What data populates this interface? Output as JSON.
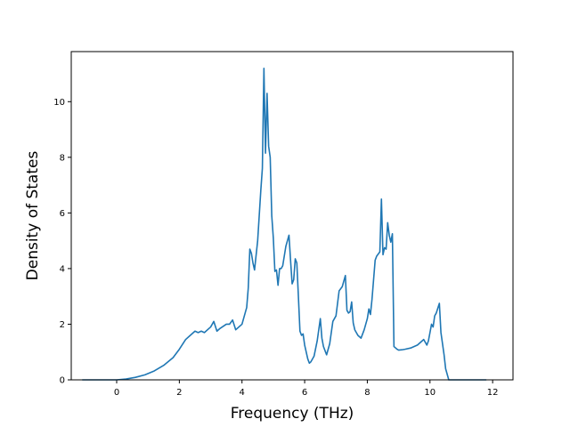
{
  "chart_data": {
    "type": "line",
    "title": "",
    "xlabel": "Frequency (THz)",
    "ylabel": "Density of States",
    "xlim": [
      -1.45,
      12.65
    ],
    "ylim": [
      0,
      11.8
    ],
    "xticks": [
      0,
      2,
      4,
      6,
      8,
      10,
      12
    ],
    "xtick_labels": [
      "0",
      "2",
      "4",
      "6",
      "8",
      "10",
      "12"
    ],
    "yticks": [
      0,
      2,
      4,
      6,
      8,
      10
    ],
    "ytick_labels": [
      "0",
      "2",
      "4",
      "6",
      "8",
      "10"
    ],
    "grid": false,
    "line_color": "#1f77b4",
    "series": [
      {
        "name": "",
        "x": [
          -1.1,
          0,
          0.3,
          0.6,
          0.9,
          1.2,
          1.5,
          1.8,
          2.0,
          2.2,
          2.4,
          2.5,
          2.6,
          2.7,
          2.8,
          2.9,
          3.0,
          3.1,
          3.2,
          3.3,
          3.5,
          3.6,
          3.7,
          3.8,
          4.0,
          4.1,
          4.15,
          4.2,
          4.25,
          4.3,
          4.35,
          4.4,
          4.5,
          4.6,
          4.65,
          4.7,
          4.75,
          4.8,
          4.85,
          4.9,
          4.95,
          5.0,
          5.05,
          5.1,
          5.15,
          5.2,
          5.25,
          5.3,
          5.4,
          5.5,
          5.55,
          5.6,
          5.65,
          5.7,
          5.75,
          5.8,
          5.85,
          5.9,
          5.95,
          6.0,
          6.1,
          6.15,
          6.2,
          6.3,
          6.4,
          6.5,
          6.55,
          6.6,
          6.65,
          6.7,
          6.8,
          6.9,
          7.0,
          7.1,
          7.2,
          7.3,
          7.35,
          7.4,
          7.45,
          7.5,
          7.55,
          7.6,
          7.7,
          7.8,
          7.9,
          8.0,
          8.05,
          8.1,
          8.15,
          8.2,
          8.25,
          8.3,
          8.4,
          8.45,
          8.5,
          8.55,
          8.6,
          8.65,
          8.7,
          8.75,
          8.8,
          8.85,
          8.9,
          8.95,
          9.0,
          9.1,
          9.2,
          9.4,
          9.6,
          9.8,
          9.9,
          9.95,
          10.0,
          10.05,
          10.1,
          10.15,
          10.2,
          10.3,
          10.35,
          10.4,
          10.45,
          10.5,
          10.6,
          10.7,
          10.8,
          11.8
        ],
        "y": [
          0,
          0,
          0.03,
          0.09,
          0.18,
          0.32,
          0.52,
          0.8,
          1.1,
          1.45,
          1.65,
          1.75,
          1.7,
          1.75,
          1.7,
          1.8,
          1.9,
          2.1,
          1.75,
          1.85,
          2.0,
          2.0,
          2.15,
          1.8,
          2.0,
          2.4,
          2.6,
          3.3,
          4.7,
          4.55,
          4.2,
          3.95,
          5.0,
          6.8,
          7.6,
          11.2,
          8.15,
          10.3,
          8.4,
          8.0,
          5.9,
          5.1,
          3.9,
          3.95,
          3.4,
          4.0,
          4.0,
          4.1,
          4.8,
          5.2,
          4.3,
          3.45,
          3.6,
          4.35,
          4.2,
          3.0,
          1.75,
          1.6,
          1.65,
          1.25,
          0.75,
          0.6,
          0.65,
          0.85,
          1.4,
          2.2,
          1.5,
          1.2,
          1.05,
          0.9,
          1.3,
          2.1,
          2.3,
          3.2,
          3.35,
          3.75,
          2.5,
          2.4,
          2.45,
          2.8,
          2.05,
          1.8,
          1.6,
          1.5,
          1.8,
          2.2,
          2.55,
          2.35,
          2.9,
          3.6,
          4.3,
          4.45,
          4.6,
          6.5,
          4.5,
          4.75,
          4.7,
          5.65,
          5.2,
          4.95,
          5.25,
          1.2,
          1.15,
          1.1,
          1.07,
          1.08,
          1.1,
          1.15,
          1.25,
          1.45,
          1.25,
          1.4,
          1.7,
          2.0,
          1.9,
          2.3,
          2.4,
          2.75,
          1.7,
          1.3,
          0.9,
          0.4,
          0,
          0,
          0,
          0
        ]
      }
    ]
  }
}
